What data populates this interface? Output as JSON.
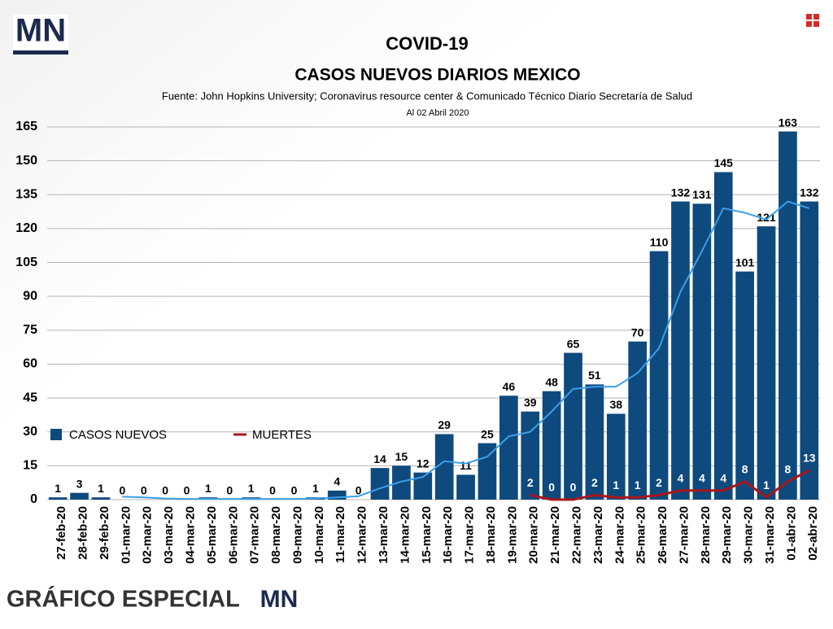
{
  "logo": "MN",
  "footer": {
    "text": "GRÁFICO ESPECIAL",
    "logo": "MN"
  },
  "chart_data": {
    "type": "bar",
    "title": "COVID-19",
    "subtitle": "CASOS NUEVOS DIARIOS MEXICO",
    "source": "Fuente: John Hopkins University; Coronavirus resource center & Comunicado Técnico Diario Secretaría de Salud",
    "date_note": "Al 02 Abril 2020",
    "categories": [
      "27-feb-20",
      "28-feb-20",
      "29-feb-20",
      "01-mar-20",
      "02-mar-20",
      "03-mar-20",
      "04-mar-20",
      "05-mar-20",
      "06-mar-20",
      "07-mar-20",
      "08-mar-20",
      "09-mar-20",
      "10-mar-20",
      "11-mar-20",
      "12-mar-20",
      "13-mar-20",
      "14-mar-20",
      "15-mar-20",
      "16-mar-20",
      "17-mar-20",
      "18-mar-20",
      "19-mar-20",
      "20-mar-20",
      "21-mar-20",
      "22-mar-20",
      "23-mar-20",
      "24-mar-20",
      "25-mar-20",
      "26-mar-20",
      "27-mar-20",
      "28-mar-20",
      "29-mar-20",
      "30-mar-20",
      "31-mar-20",
      "01-abr-20",
      "02-abr-20"
    ],
    "series": [
      {
        "name": "CASOS NUEVOS",
        "type": "bar",
        "color": "#0e4a7e",
        "values": [
          1,
          3,
          1,
          0,
          0,
          0,
          0,
          1,
          0,
          1,
          0,
          0,
          1,
          4,
          0,
          14,
          15,
          12,
          29,
          11,
          25,
          46,
          39,
          48,
          65,
          51,
          38,
          70,
          110,
          132,
          131,
          145,
          101,
          121,
          163,
          132
        ]
      },
      {
        "name": "MUERTES",
        "type": "line",
        "color": "#a8161a",
        "values": [
          null,
          null,
          null,
          null,
          null,
          null,
          null,
          null,
          null,
          null,
          null,
          null,
          null,
          null,
          null,
          null,
          null,
          null,
          null,
          null,
          null,
          null,
          2,
          0,
          0,
          2,
          1,
          1,
          2,
          4,
          4,
          4,
          8,
          1,
          8,
          13
        ]
      },
      {
        "type": "line",
        "color": "#3b9fe8",
        "values": [
          null,
          null,
          null,
          1.3,
          1,
          0.5,
          0.3,
          0.3,
          0.3,
          0.3,
          0.3,
          0.3,
          0.5,
          1,
          1.5,
          5,
          8,
          10,
          17,
          16,
          19,
          28,
          30,
          39,
          49,
          50,
          50,
          56,
          67,
          92,
          110,
          129,
          127,
          124,
          132,
          129
        ]
      }
    ],
    "ylim": [
      0,
      165
    ],
    "yticks": [
      0,
      15,
      30,
      45,
      60,
      75,
      90,
      105,
      120,
      135,
      150,
      165
    ],
    "grid": true,
    "legend": "left"
  }
}
